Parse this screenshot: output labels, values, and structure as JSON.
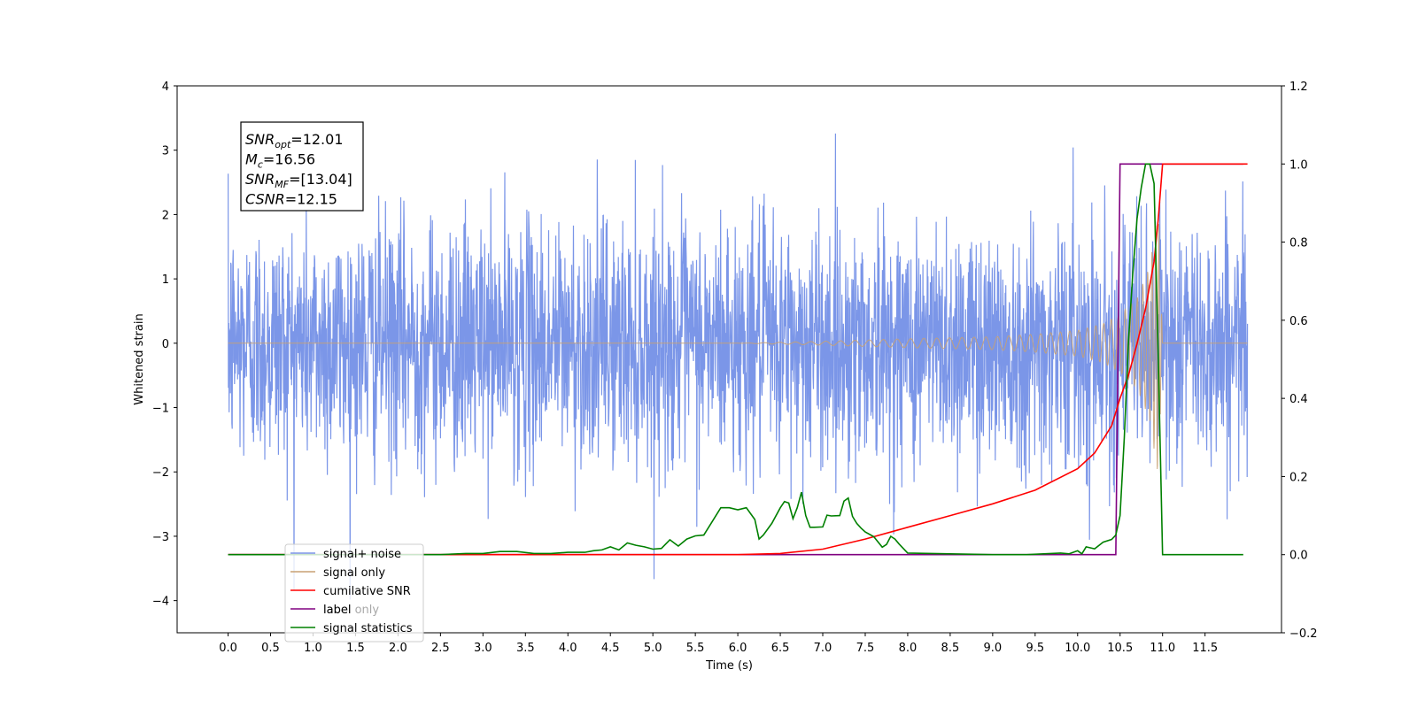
{
  "chart_data": {
    "type": "line",
    "xlabel": "Time (s)",
    "ylabel_left": "Whitened strain",
    "ylabel_right": "",
    "xlim": [
      -0.6,
      12.4
    ],
    "ylim_left": [
      -4.5,
      4
    ],
    "ylim_right": [
      -0.2,
      1.2
    ],
    "x_ticks": [
      0.0,
      0.5,
      1.0,
      1.5,
      2.0,
      2.5,
      3.0,
      3.5,
      4.0,
      4.5,
      5.0,
      5.5,
      6.0,
      6.5,
      7.0,
      7.5,
      8.0,
      8.5,
      9.0,
      9.5,
      10.0,
      10.5,
      11.0,
      11.5
    ],
    "x_tick_labels": [
      "0.0",
      "0.5",
      "1.0",
      "1.5",
      "2.0",
      "2.5",
      "3.0",
      "3.5",
      "4.0",
      "4.5",
      "5.0",
      "5.5",
      "6.0",
      "6.5",
      "7.0",
      "7.5",
      "8.0",
      "8.5",
      "9.0",
      "9.5",
      "10.0",
      "10.5",
      "11.0",
      "11.5"
    ],
    "y_left_ticks": [
      -4,
      -3,
      -2,
      -1,
      0,
      1,
      2,
      3,
      4
    ],
    "y_left_tick_labels": [
      "−4",
      "−3",
      "−2",
      "−1",
      "0",
      "1",
      "2",
      "3",
      "4"
    ],
    "y_right_ticks": [
      -0.2,
      0.0,
      0.2,
      0.4,
      0.6,
      0.8,
      1.0,
      1.2
    ],
    "y_right_tick_labels": [
      "−0.2",
      "0.0",
      "0.2",
      "0.4",
      "0.6",
      "0.8",
      "1.0",
      "1.2"
    ],
    "grid": false,
    "legend_position": "lower-left",
    "annotation": {
      "lines": [
        {
          "var": "SNR",
          "sub": "opt",
          "val": "=12.01"
        },
        {
          "var": "M",
          "sub": "c",
          "val": "=16.56"
        },
        {
          "var": "SNR",
          "sub": "MF",
          "val": "=[13.04]"
        },
        {
          "var": "CSNR",
          "sub": "",
          "val": "=12.15"
        }
      ]
    },
    "series": [
      {
        "name": "signal+ noise",
        "axis": "left",
        "color": "#7b96e8",
        "description_values": {
          "t_start": 0.0,
          "t_end": 12.0,
          "mean": 0.0,
          "std": 0.95,
          "min": -4.1,
          "max": 3.63
        }
      },
      {
        "name": "signal only",
        "axis": "left",
        "color": "#c8a173",
        "chirp_envelope": {
          "t": [
            0.0,
            6.0,
            7.0,
            8.0,
            9.0,
            9.5,
            10.0,
            10.3,
            10.5,
            10.7,
            10.85,
            10.95,
            11.0,
            12.0
          ],
          "amp": [
            0.0,
            0.0,
            0.03,
            0.07,
            0.1,
            0.14,
            0.2,
            0.3,
            0.45,
            0.7,
            1.2,
            2.1,
            0.0,
            0.0
          ]
        }
      },
      {
        "name": "cumilative SNR",
        "axis": "right",
        "color": "#ff0000",
        "x": [
          0.0,
          6.0,
          6.5,
          7.0,
          7.5,
          8.0,
          8.5,
          9.0,
          9.5,
          10.0,
          10.2,
          10.4,
          10.5,
          10.6,
          10.7,
          10.8,
          10.9,
          10.95,
          11.0,
          12.0
        ],
        "y": [
          0.0,
          0.0,
          0.003,
          0.014,
          0.04,
          0.07,
          0.1,
          0.13,
          0.165,
          0.22,
          0.26,
          0.33,
          0.4,
          0.46,
          0.54,
          0.63,
          0.75,
          0.86,
          1.0,
          1.0
        ]
      },
      {
        "name": "label",
        "axis": "right",
        "color": "#800080",
        "x": [
          0.0,
          10.45,
          10.5,
          11.95
        ],
        "y": [
          0.0,
          0.0,
          1.0,
          1.0
        ]
      },
      {
        "name": "label only",
        "axis": "right",
        "color": "#ffa500"
      },
      {
        "name": "signal statistics",
        "axis": "right",
        "color": "#008000",
        "x": [
          0.0,
          2.5,
          2.8,
          3.0,
          3.2,
          3.4,
          3.6,
          3.8,
          4.0,
          4.2,
          4.3,
          4.4,
          4.5,
          4.6,
          4.7,
          4.8,
          4.9,
          5.0,
          5.1,
          5.2,
          5.3,
          5.4,
          5.5,
          5.6,
          5.7,
          5.8,
          5.9,
          6.0,
          6.1,
          6.2,
          6.25,
          6.3,
          6.4,
          6.5,
          6.55,
          6.6,
          6.65,
          6.7,
          6.75,
          6.8,
          6.85,
          6.9,
          7.0,
          7.05,
          7.1,
          7.2,
          7.25,
          7.3,
          7.35,
          7.4,
          7.45,
          7.5,
          7.6,
          7.7,
          7.75,
          7.8,
          7.85,
          7.9,
          8.0,
          9.0,
          9.4,
          9.6,
          9.8,
          9.9,
          10.0,
          10.05,
          10.1,
          10.2,
          10.3,
          10.4,
          10.45,
          10.5,
          10.55,
          10.6,
          10.65,
          10.7,
          10.75,
          10.8,
          10.85,
          10.9,
          10.95,
          11.0,
          11.05,
          11.95
        ],
        "y": [
          0.0,
          0.0,
          0.003,
          0.003,
          0.008,
          0.008,
          0.003,
          0.003,
          0.006,
          0.006,
          0.01,
          0.012,
          0.02,
          0.012,
          0.03,
          0.024,
          0.02,
          0.014,
          0.016,
          0.038,
          0.022,
          0.04,
          0.048,
          0.05,
          0.085,
          0.12,
          0.12,
          0.115,
          0.12,
          0.09,
          0.04,
          0.05,
          0.08,
          0.12,
          0.136,
          0.132,
          0.092,
          0.12,
          0.16,
          0.1,
          0.07,
          0.07,
          0.071,
          0.101,
          0.099,
          0.1,
          0.137,
          0.145,
          0.098,
          0.08,
          0.068,
          0.058,
          0.046,
          0.019,
          0.026,
          0.047,
          0.04,
          0.027,
          0.004,
          0.0,
          0.0,
          0.002,
          0.004,
          0.002,
          0.01,
          0.002,
          0.02,
          0.015,
          0.032,
          0.039,
          0.05,
          0.1,
          0.3,
          0.55,
          0.72,
          0.86,
          0.94,
          1.0,
          1.0,
          0.95,
          0.5,
          0.0,
          0.0,
          0.0
        ]
      }
    ]
  }
}
